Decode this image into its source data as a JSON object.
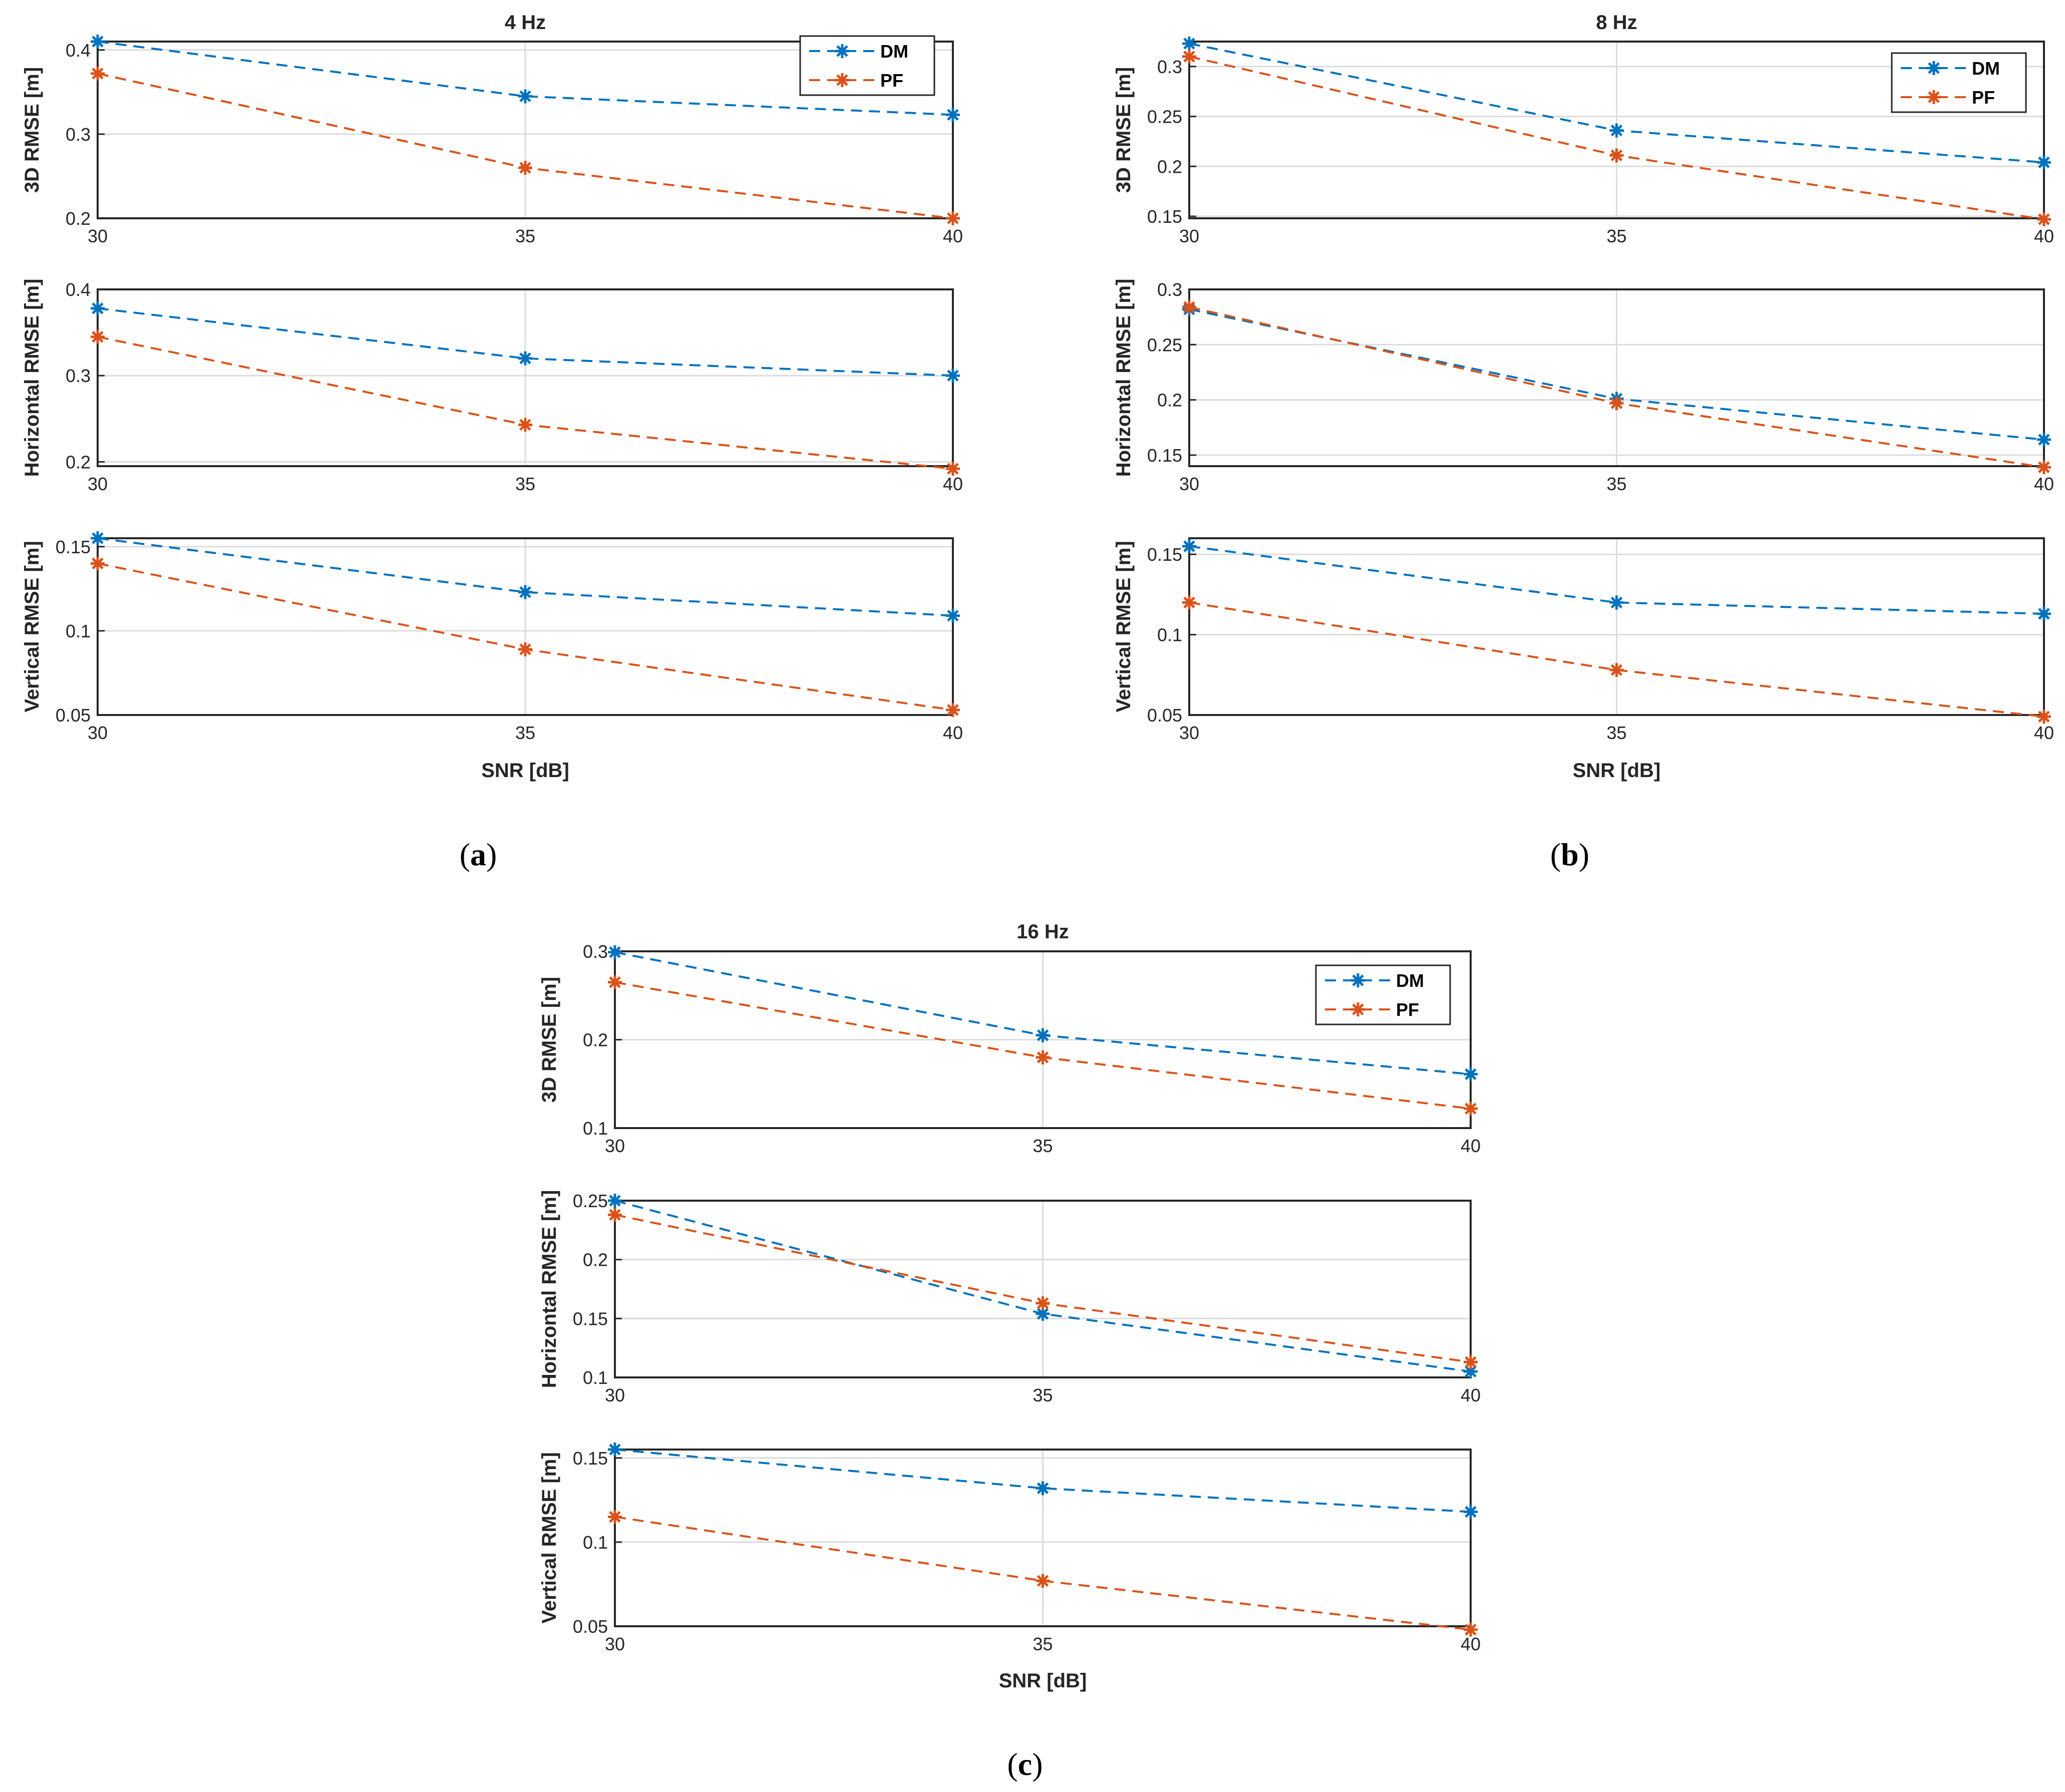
{
  "colors": {
    "DM": "#0072BD",
    "PF": "#D95319",
    "grid": "#dcdcdc",
    "axis": "#262626"
  },
  "chart_data": [
    {
      "type": "line",
      "panel": "(a)",
      "panel_letter": "a",
      "title": "4 Hz",
      "xlabel": "SNR [dB]",
      "x": [
        30,
        35,
        40
      ],
      "x_ticks": [
        "30",
        "35",
        "40"
      ],
      "legend": [
        "DM",
        "PF"
      ],
      "legend_position": "top-right",
      "subplots": [
        {
          "ylabel": "3D RMSE [m]",
          "ylim": [
            0.2,
            0.41
          ],
          "yticks": [
            "0.2",
            "0.3",
            "0.4"
          ],
          "series": [
            {
              "name": "DM",
              "values": [
                0.41,
                0.345,
                0.323
              ]
            },
            {
              "name": "PF",
              "values": [
                0.372,
                0.26,
                0.2
              ]
            }
          ]
        },
        {
          "ylabel": "Horizontal RMSE [m]",
          "ylim": [
            0.195,
            0.4
          ],
          "yticks": [
            "0.2",
            "0.3",
            "0.4"
          ],
          "series": [
            {
              "name": "DM",
              "values": [
                0.378,
                0.32,
                0.3
              ]
            },
            {
              "name": "PF",
              "values": [
                0.345,
                0.243,
                0.192
              ]
            }
          ]
        },
        {
          "ylabel": "Vertical RMSE [m]",
          "ylim": [
            0.05,
            0.155
          ],
          "yticks": [
            "0.05",
            "0.1",
            "0.15"
          ],
          "series": [
            {
              "name": "DM",
              "values": [
                0.155,
                0.123,
                0.109
              ]
            },
            {
              "name": "PF",
              "values": [
                0.14,
                0.089,
                0.053
              ]
            }
          ]
        }
      ]
    },
    {
      "type": "line",
      "panel": "(b)",
      "panel_letter": "b",
      "title": "8 Hz",
      "xlabel": "SNR [dB]",
      "x": [
        30,
        35,
        40
      ],
      "x_ticks": [
        "30",
        "35",
        "40"
      ],
      "legend": [
        "DM",
        "PF"
      ],
      "legend_position": "top-right",
      "subplots": [
        {
          "ylabel": "3D RMSE [m]",
          "ylim": [
            0.148,
            0.325
          ],
          "yticks": [
            "0.15",
            "0.2",
            "0.25",
            "0.3"
          ],
          "series": [
            {
              "name": "DM",
              "values": [
                0.323,
                0.236,
                0.204
              ]
            },
            {
              "name": "PF",
              "values": [
                0.31,
                0.211,
                0.147
              ]
            }
          ]
        },
        {
          "ylabel": "Horizontal RMSE [m]",
          "ylim": [
            0.14,
            0.3
          ],
          "yticks": [
            "0.15",
            "0.2",
            "0.25",
            "0.3"
          ],
          "series": [
            {
              "name": "DM",
              "values": [
                0.282,
                0.201,
                0.164
              ]
            },
            {
              "name": "PF",
              "values": [
                0.284,
                0.197,
                0.139
              ]
            }
          ]
        },
        {
          "ylabel": "Vertical RMSE [m]",
          "ylim": [
            0.05,
            0.16
          ],
          "yticks": [
            "0.05",
            "0.1",
            "0.15"
          ],
          "series": [
            {
              "name": "DM",
              "values": [
                0.155,
                0.12,
                0.113
              ]
            },
            {
              "name": "PF",
              "values": [
                0.12,
                0.078,
                0.049
              ]
            }
          ]
        }
      ]
    },
    {
      "type": "line",
      "panel": "(c)",
      "panel_letter": "c",
      "title": "16 Hz",
      "xlabel": "SNR [dB]",
      "x": [
        30,
        35,
        40
      ],
      "x_ticks": [
        "30",
        "35",
        "40"
      ],
      "legend": [
        "DM",
        "PF"
      ],
      "legend_position": "top-right",
      "subplots": [
        {
          "ylabel": "3D RMSE [m]",
          "ylim": [
            0.1,
            0.3
          ],
          "yticks": [
            "0.1",
            "0.2",
            "0.3"
          ],
          "series": [
            {
              "name": "DM",
              "values": [
                0.299,
                0.205,
                0.161
              ]
            },
            {
              "name": "PF",
              "values": [
                0.265,
                0.18,
                0.122
              ]
            }
          ]
        },
        {
          "ylabel": "Horizontal RMSE [m]",
          "ylim": [
            0.1,
            0.25
          ],
          "yticks": [
            "0.1",
            "0.15",
            "0.2",
            "0.25"
          ],
          "series": [
            {
              "name": "DM",
              "values": [
                0.25,
                0.154,
                0.105
              ]
            },
            {
              "name": "PF",
              "values": [
                0.238,
                0.163,
                0.113
              ]
            }
          ]
        },
        {
          "ylabel": "Vertical RMSE [m]",
          "ylim": [
            0.05,
            0.155
          ],
          "yticks": [
            "0.05",
            "0.1",
            "0.15"
          ],
          "series": [
            {
              "name": "DM",
              "values": [
                0.155,
                0.132,
                0.118
              ]
            },
            {
              "name": "PF",
              "values": [
                0.115,
                0.077,
                0.048
              ]
            }
          ]
        }
      ]
    }
  ]
}
